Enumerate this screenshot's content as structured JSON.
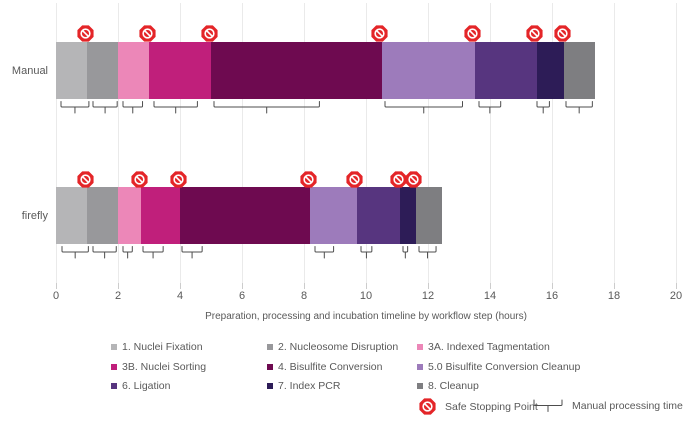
{
  "chart_data": {
    "type": "bar",
    "subtype": "horizontal-stacked-timeline",
    "xlabel": "Preparation, processing and incubation timeline by workflow step (hours)",
    "xlim": [
      0,
      20
    ],
    "x_ticks": [
      0,
      2,
      4,
      6,
      8,
      10,
      12,
      14,
      16,
      18,
      20
    ],
    "grid": "vertical-on",
    "legend_position": "bottom",
    "steps": [
      {
        "label": "1. Nuclei Fixation",
        "color": "#b5b5b7"
      },
      {
        "label": "2. Nucleosome Disruption",
        "color": "#98989b"
      },
      {
        "label": "3A. Indexed Tagmentation",
        "color": "#ec87b8"
      },
      {
        "label": "3B. Nuclei Sorting",
        "color": "#c01f7b"
      },
      {
        "label": "4. Bisulfite Conversion",
        "color": "#6e0a50"
      },
      {
        "label": "5.0 Bisulfite Conversion Cleanup",
        "color": "#9d7bbb"
      },
      {
        "label": "6. Ligation",
        "color": "#57357f"
      },
      {
        "label": "7. Index PCR",
        "color": "#2d1c57"
      },
      {
        "label": "8. Cleanup",
        "color": "#7e7e81"
      }
    ],
    "series": [
      {
        "name": "Manual",
        "durations_hours": [
          1,
          1,
          1,
          2,
          5.5,
          3,
          2,
          0.9,
          1
        ],
        "total_hours": 17.4,
        "safe_stopping_points_hours": [
          1,
          3,
          5,
          10.5,
          13.5,
          15.5,
          16.4
        ],
        "manual_processing_spans_hours": [
          [
            0.15,
            1.05
          ],
          [
            1.2,
            1.98
          ],
          [
            2.15,
            2.78
          ],
          [
            3.15,
            4.55
          ],
          [
            5.1,
            8.5
          ],
          [
            10.6,
            13.1
          ],
          [
            13.65,
            14.35
          ],
          [
            15.52,
            15.92
          ],
          [
            16.45,
            17.3
          ]
        ]
      },
      {
        "name": "firefly",
        "durations_hours": [
          1,
          1,
          0.75,
          1.25,
          4.2,
          1.5,
          1.4,
          0.5,
          0.85
        ],
        "total_hours": 12.45,
        "safe_stopping_points_hours": [
          1,
          2.75,
          4,
          8.2,
          9.7,
          11.1,
          11.6
        ],
        "manual_processing_spans_hours": [
          [
            0.2,
            1.05
          ],
          [
            1.2,
            1.95
          ],
          [
            2.15,
            2.45
          ],
          [
            2.8,
            3.45
          ],
          [
            4.05,
            4.7
          ],
          [
            8.35,
            8.95
          ],
          [
            9.85,
            10.2
          ],
          [
            11.2,
            11.35
          ],
          [
            11.7,
            12.25
          ]
        ]
      }
    ],
    "key": {
      "safe_stop_label": "Safe Stopping Point",
      "manual_time_label": "Manual processing time"
    },
    "colors": {
      "safe_stop_red": "#e42528",
      "grid": "#eaeaea",
      "text": "#595959",
      "bracket": "#4d4d4d"
    }
  }
}
